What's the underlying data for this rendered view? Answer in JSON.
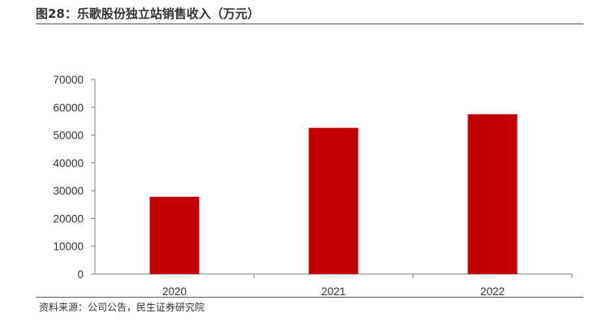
{
  "figure": {
    "title": "图28：乐歌股份独立站销售收入（万元）",
    "source": "资料来源：公司公告，民生证券研究院"
  },
  "chart_data": {
    "type": "bar",
    "categories": [
      "2020",
      "2021",
      "2022"
    ],
    "values": [
      27800,
      52600,
      57500
    ],
    "ylim": [
      0,
      70000
    ],
    "yticks": [
      0,
      10000,
      20000,
      30000,
      40000,
      50000,
      60000,
      70000
    ],
    "bar_color": "#C00000",
    "grid": false,
    "legend": "none"
  }
}
